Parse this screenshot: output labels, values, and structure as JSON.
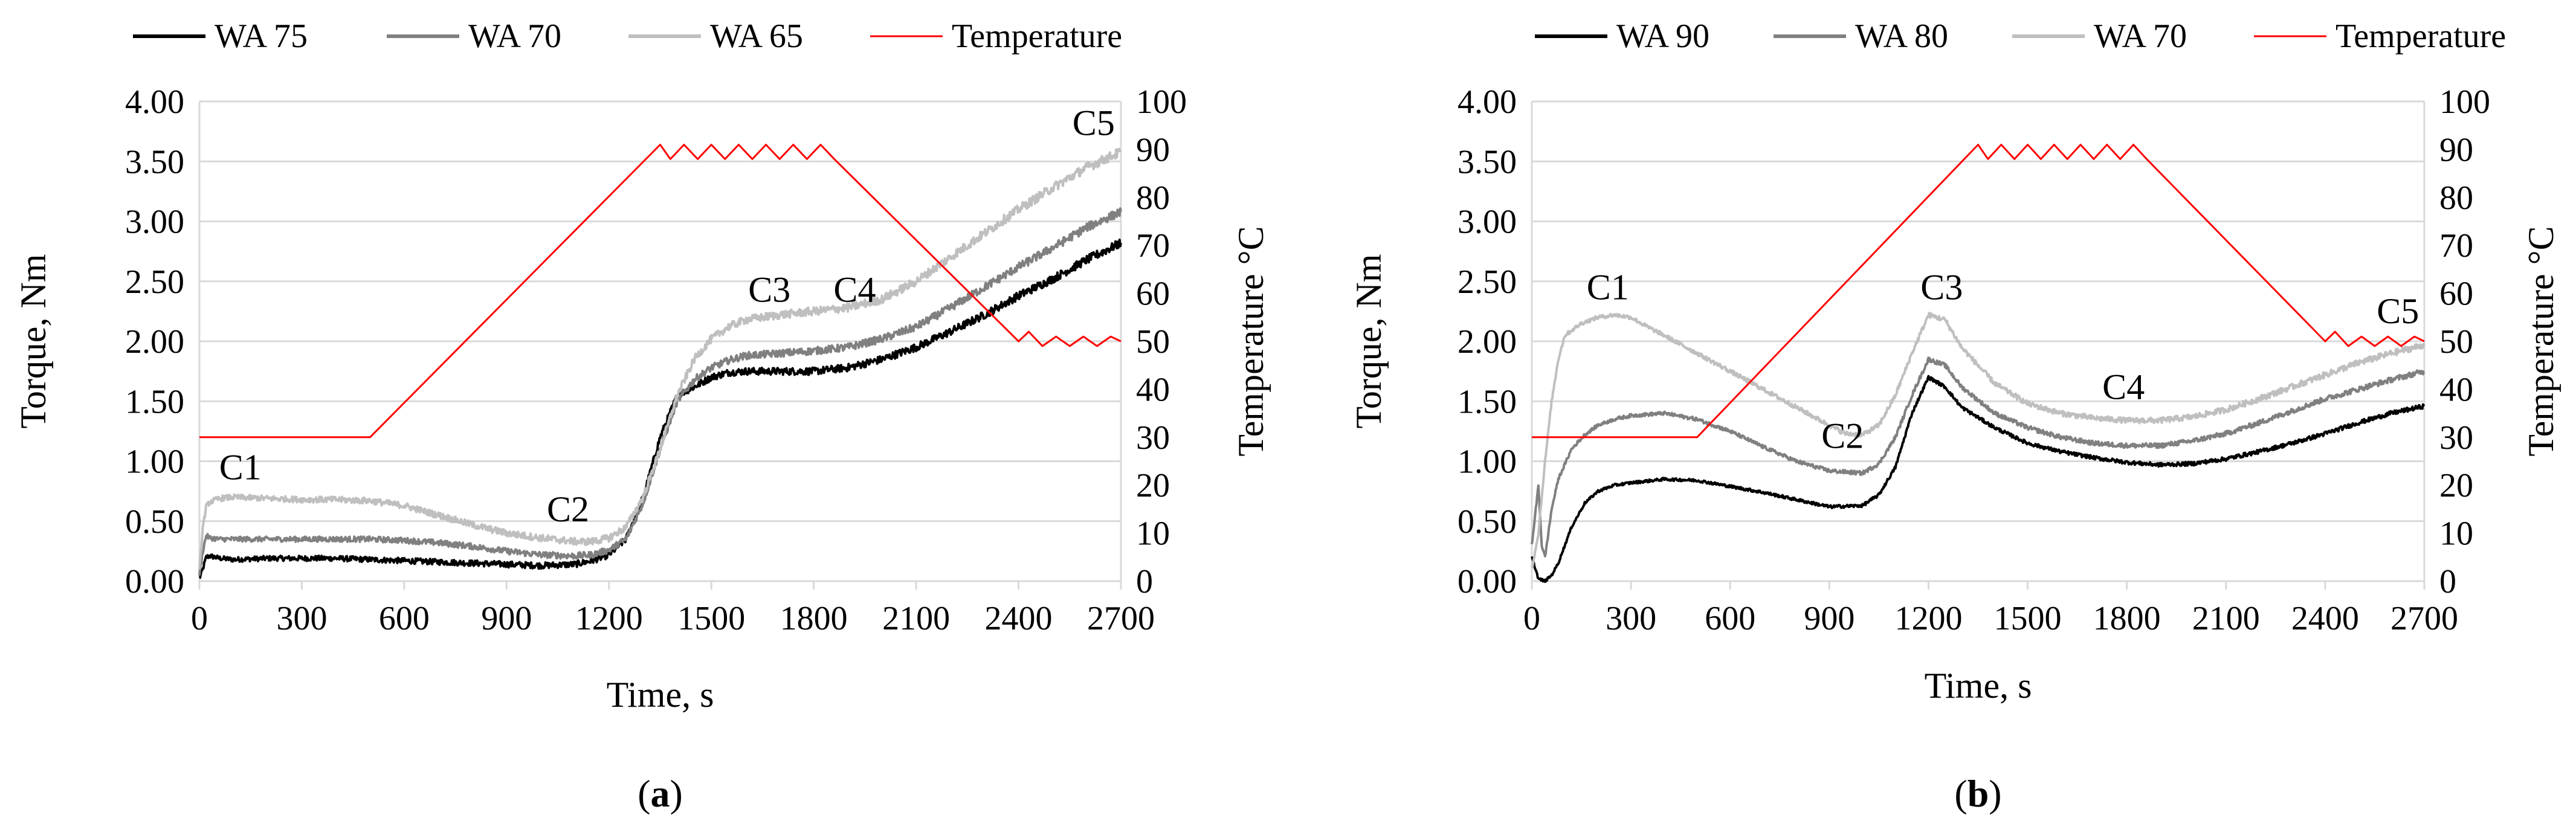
{
  "chart_data": [
    {
      "type": "line",
      "panel": "a",
      "panel_label": "(a)",
      "legend": [
        {
          "name": "WA 75",
          "color": "#000000"
        },
        {
          "name": "WA 70",
          "color": "#808080"
        },
        {
          "name": "WA 65",
          "color": "#bfbfbf"
        },
        {
          "name": "Temperature",
          "color": "#ff0000"
        }
      ],
      "xlabel": "Time, s",
      "ylabel": "Torque, Nm",
      "y2label": "Temperature °C",
      "xlim": [
        0,
        2700
      ],
      "ylim": [
        0,
        4.0
      ],
      "y2lim": [
        0,
        100
      ],
      "xticks": [
        "0",
        "300",
        "600",
        "900",
        "1200",
        "1500",
        "1800",
        "2100",
        "2400",
        "2700"
      ],
      "yticks": [
        "0.00",
        "0.50",
        "1.00",
        "1.50",
        "2.00",
        "2.50",
        "3.00",
        "3.50",
        "4.00"
      ],
      "y2ticks": [
        "0",
        "10",
        "20",
        "30",
        "40",
        "50",
        "60",
        "70",
        "80",
        "90",
        "100"
      ],
      "annotations": [
        {
          "text": "C1",
          "x": 120,
          "y": 0.85
        },
        {
          "text": "C2",
          "x": 1080,
          "y": 0.5
        },
        {
          "text": "C3",
          "x": 1670,
          "y": 2.33
        },
        {
          "text": "C4",
          "x": 1920,
          "y": 2.33
        },
        {
          "text": "C5",
          "x": 2620,
          "y": 3.72
        }
      ],
      "series": [
        {
          "name": "WA 75",
          "axis": "left",
          "noise": 0.04,
          "x": [
            0,
            10,
            20,
            30,
            60,
            100,
            200,
            300,
            400,
            500,
            600,
            700,
            800,
            900,
            1000,
            1100,
            1150,
            1200,
            1250,
            1300,
            1350,
            1400,
            1450,
            1500,
            1550,
            1600,
            1700,
            1800,
            1900,
            2000,
            2100,
            2200,
            2300,
            2400,
            2500,
            2600,
            2700
          ],
          "y": [
            0.02,
            0.1,
            0.2,
            0.21,
            0.19,
            0.18,
            0.19,
            0.19,
            0.19,
            0.18,
            0.17,
            0.16,
            0.15,
            0.14,
            0.13,
            0.14,
            0.17,
            0.22,
            0.35,
            0.7,
            1.2,
            1.55,
            1.62,
            1.7,
            1.74,
            1.75,
            1.75,
            1.75,
            1.78,
            1.85,
            1.95,
            2.08,
            2.22,
            2.38,
            2.52,
            2.68,
            2.82
          ]
        },
        {
          "name": "WA 70",
          "axis": "left",
          "noise": 0.04,
          "x": [
            0,
            10,
            20,
            30,
            60,
            100,
            200,
            300,
            400,
            500,
            600,
            700,
            800,
            900,
            1000,
            1100,
            1150,
            1200,
            1250,
            1300,
            1350,
            1400,
            1450,
            1500,
            1550,
            1600,
            1700,
            1800,
            1900,
            2000,
            2100,
            2200,
            2300,
            2400,
            2500,
            2600,
            2700
          ],
          "y": [
            0.05,
            0.25,
            0.38,
            0.36,
            0.35,
            0.35,
            0.35,
            0.35,
            0.35,
            0.35,
            0.34,
            0.32,
            0.29,
            0.25,
            0.22,
            0.21,
            0.22,
            0.26,
            0.35,
            0.65,
            1.1,
            1.5,
            1.68,
            1.78,
            1.84,
            1.88,
            1.9,
            1.92,
            1.95,
            2.02,
            2.12,
            2.28,
            2.45,
            2.62,
            2.78,
            2.95,
            3.08
          ]
        },
        {
          "name": "WA 65",
          "axis": "left",
          "noise": 0.045,
          "x": [
            0,
            10,
            20,
            30,
            60,
            100,
            200,
            300,
            400,
            500,
            600,
            700,
            800,
            900,
            1000,
            1100,
            1150,
            1200,
            1250,
            1300,
            1350,
            1400,
            1450,
            1500,
            1550,
            1600,
            1700,
            1800,
            1900,
            2000,
            2100,
            2200,
            2300,
            2400,
            2500,
            2600,
            2700
          ],
          "y": [
            0.08,
            0.45,
            0.62,
            0.66,
            0.69,
            0.7,
            0.69,
            0.68,
            0.68,
            0.67,
            0.63,
            0.55,
            0.47,
            0.4,
            0.36,
            0.33,
            0.33,
            0.36,
            0.45,
            0.7,
            1.1,
            1.55,
            1.85,
            2.02,
            2.12,
            2.18,
            2.22,
            2.25,
            2.28,
            2.35,
            2.5,
            2.7,
            2.9,
            3.1,
            3.28,
            3.45,
            3.58
          ]
        },
        {
          "name": "Temperature",
          "axis": "right",
          "noise": 0,
          "x": [
            0,
            500,
            1350,
            1380,
            1420,
            1460,
            1500,
            1540,
            1580,
            1620,
            1660,
            1700,
            1740,
            1780,
            1820,
            1860,
            2400,
            2430,
            2470,
            2510,
            2550,
            2590,
            2630,
            2670,
            2700
          ],
          "y": [
            30,
            30,
            91,
            88,
            91,
            88,
            91,
            88,
            91,
            88,
            91,
            88,
            91,
            88,
            91,
            88,
            50,
            52,
            49,
            51,
            49,
            51,
            49,
            51,
            50
          ]
        }
      ]
    },
    {
      "type": "line",
      "panel": "b",
      "panel_label": "(b)",
      "legend": [
        {
          "name": "WA 90",
          "color": "#000000"
        },
        {
          "name": "WA 80",
          "color": "#808080"
        },
        {
          "name": "WA 70",
          "color": "#bfbfbf"
        },
        {
          "name": "Temperature",
          "color": "#ff0000"
        }
      ],
      "xlabel": "Time, s",
      "ylabel": "Torque, Nm",
      "y2label": "Temperature °C",
      "xlim": [
        0,
        2700
      ],
      "ylim": [
        0,
        4.0
      ],
      "y2lim": [
        0,
        100
      ],
      "xticks": [
        "0",
        "300",
        "600",
        "900",
        "1200",
        "1500",
        "1800",
        "2100",
        "2400",
        "2700"
      ],
      "yticks": [
        "0.00",
        "0.50",
        "1.00",
        "1.50",
        "2.00",
        "2.50",
        "3.00",
        "3.50",
        "4.00"
      ],
      "y2ticks": [
        "0",
        "10",
        "20",
        "30",
        "40",
        "50",
        "60",
        "70",
        "80",
        "90",
        "100"
      ],
      "annotations": [
        {
          "text": "C1",
          "x": 230,
          "y": 2.35
        },
        {
          "text": "C2",
          "x": 940,
          "y": 1.11
        },
        {
          "text": "C3",
          "x": 1240,
          "y": 2.35
        },
        {
          "text": "C4",
          "x": 1790,
          "y": 1.52
        },
        {
          "text": "C5",
          "x": 2620,
          "y": 2.15
        }
      ],
      "series": [
        {
          "name": "WA 90",
          "axis": "left",
          "noise": 0.02,
          "x": [
            0,
            20,
            40,
            60,
            80,
            120,
            160,
            200,
            250,
            300,
            400,
            500,
            600,
            700,
            800,
            900,
            1000,
            1050,
            1100,
            1150,
            1200,
            1250,
            1300,
            1400,
            1500,
            1600,
            1700,
            1800,
            1900,
            2000,
            2100,
            2200,
            2300,
            2400,
            2500,
            2600,
            2700
          ],
          "y": [
            0.2,
            0.02,
            0.0,
            0.05,
            0.15,
            0.45,
            0.65,
            0.75,
            0.8,
            0.82,
            0.85,
            0.84,
            0.79,
            0.74,
            0.68,
            0.62,
            0.63,
            0.72,
            0.95,
            1.4,
            1.7,
            1.62,
            1.45,
            1.28,
            1.15,
            1.08,
            1.03,
            0.99,
            0.97,
            0.98,
            1.02,
            1.08,
            1.15,
            1.23,
            1.32,
            1.4,
            1.46
          ]
        },
        {
          "name": "WA 80",
          "axis": "left",
          "noise": 0.025,
          "x": [
            0,
            20,
            30,
            40,
            60,
            80,
            120,
            160,
            200,
            250,
            300,
            400,
            500,
            600,
            700,
            800,
            900,
            1000,
            1050,
            1100,
            1150,
            1200,
            1250,
            1300,
            1400,
            1500,
            1600,
            1700,
            1800,
            1900,
            2000,
            2100,
            2200,
            2300,
            2400,
            2500,
            2600,
            2700
          ],
          "y": [
            0.3,
            0.8,
            0.3,
            0.2,
            0.6,
            0.85,
            1.1,
            1.22,
            1.3,
            1.35,
            1.38,
            1.4,
            1.35,
            1.25,
            1.12,
            1.0,
            0.92,
            0.9,
            0.98,
            1.2,
            1.55,
            1.85,
            1.8,
            1.62,
            1.4,
            1.28,
            1.2,
            1.15,
            1.13,
            1.13,
            1.17,
            1.23,
            1.32,
            1.42,
            1.52,
            1.6,
            1.68,
            1.75
          ]
        },
        {
          "name": "WA 70",
          "axis": "left",
          "noise": 0.03,
          "x": [
            0,
            20,
            40,
            60,
            80,
            100,
            150,
            200,
            250,
            300,
            350,
            400,
            500,
            600,
            700,
            800,
            900,
            950,
            1000,
            1050,
            1100,
            1150,
            1200,
            1250,
            1300,
            1400,
            1500,
            1600,
            1700,
            1800,
            1900,
            2000,
            2100,
            2200,
            2300,
            2400,
            2500,
            2600,
            2700
          ],
          "y": [
            0.1,
            0.4,
            1.0,
            1.5,
            1.85,
            2.05,
            2.15,
            2.2,
            2.22,
            2.2,
            2.12,
            2.05,
            1.9,
            1.75,
            1.6,
            1.45,
            1.3,
            1.23,
            1.22,
            1.3,
            1.55,
            1.9,
            2.22,
            2.18,
            1.95,
            1.65,
            1.48,
            1.4,
            1.36,
            1.34,
            1.34,
            1.37,
            1.43,
            1.52,
            1.62,
            1.72,
            1.82,
            1.9,
            1.97
          ]
        },
        {
          "name": "Temperature",
          "axis": "right",
          "noise": 0,
          "x": [
            0,
            500,
            1350,
            1380,
            1420,
            1460,
            1500,
            1540,
            1580,
            1620,
            1660,
            1700,
            1740,
            1780,
            1820,
            1860,
            2400,
            2430,
            2470,
            2510,
            2550,
            2590,
            2630,
            2670,
            2700
          ],
          "y": [
            30,
            30,
            91,
            88,
            91,
            88,
            91,
            88,
            91,
            88,
            91,
            88,
            91,
            88,
            91,
            88,
            50,
            52,
            49,
            51,
            49,
            51,
            49,
            51,
            50
          ]
        }
      ]
    }
  ]
}
